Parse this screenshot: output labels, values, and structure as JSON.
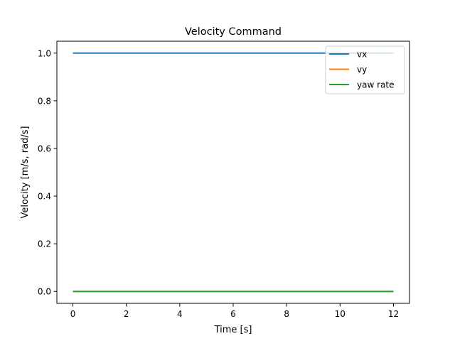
{
  "chart_data": {
    "type": "line",
    "title": "Velocity Command",
    "xlabel": "Time [s]",
    "ylabel": "Velocity [m/s, rad/s]",
    "xlim": [
      -0.6,
      12.6
    ],
    "ylim": [
      -0.05,
      1.05
    ],
    "xticks": [
      0,
      2,
      4,
      6,
      8,
      10,
      12
    ],
    "xtick_labels": [
      "0",
      "2",
      "4",
      "6",
      "8",
      "10",
      "12"
    ],
    "yticks": [
      0.0,
      0.2,
      0.4,
      0.6,
      0.8,
      1.0
    ],
    "ytick_labels": [
      "0.0",
      "0.2",
      "0.4",
      "0.6",
      "0.8",
      "1.0"
    ],
    "grid": false,
    "legend_position": "top-right",
    "series": [
      {
        "name": "vx",
        "color": "#1f77b4",
        "x": [
          0,
          12
        ],
        "y": [
          1.0,
          1.0
        ]
      },
      {
        "name": "vy",
        "color": "#ff7f0e",
        "x": [
          0,
          12
        ],
        "y": [
          0.0,
          0.0
        ]
      },
      {
        "name": "yaw rate",
        "color": "#2ca02c",
        "x": [
          0,
          12
        ],
        "y": [
          0.0,
          0.0
        ]
      }
    ]
  }
}
